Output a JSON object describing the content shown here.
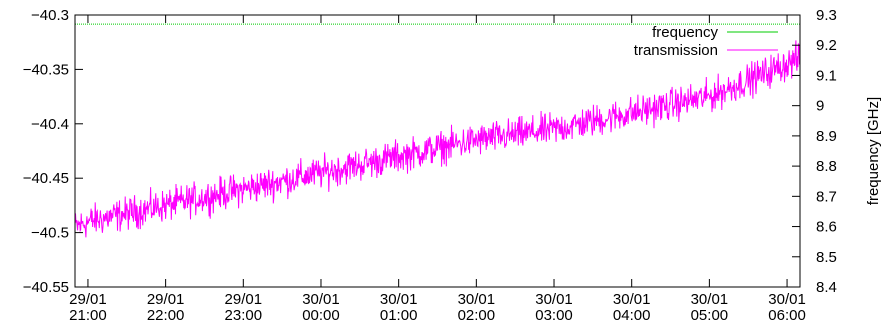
{
  "chart_data": {
    "type": "line",
    "title": "",
    "xlabel": "",
    "ylabel": "",
    "y2label": "frequency [GHz]",
    "grid": false,
    "legend_position": "top-right",
    "x_range": [
      "29/01 20:50",
      "30/01 06:10"
    ],
    "ylim": [
      -40.55,
      -40.3
    ],
    "y2lim": [
      8.4,
      9.3
    ],
    "y_ticks": [
      "-40.3",
      "-40.35",
      "-40.4",
      "-40.45",
      "-40.5",
      "-40.55"
    ],
    "y2_ticks": [
      "9.3",
      "9.2",
      "9.1",
      "9",
      "8.9",
      "8.8",
      "8.7",
      "8.6",
      "8.5",
      "8.4"
    ],
    "x_ticks": [
      {
        "date": "29/01",
        "time": "21:00"
      },
      {
        "date": "29/01",
        "time": "22:00"
      },
      {
        "date": "29/01",
        "time": "23:00"
      },
      {
        "date": "30/01",
        "time": "00:00"
      },
      {
        "date": "30/01",
        "time": "01:00"
      },
      {
        "date": "30/01",
        "time": "02:00"
      },
      {
        "date": "30/01",
        "time": "03:00"
      },
      {
        "date": "30/01",
        "time": "04:00"
      },
      {
        "date": "30/01",
        "time": "05:00"
      },
      {
        "date": "30/01",
        "time": "06:00"
      }
    ],
    "series": [
      {
        "name": "frequency",
        "axis": "y2",
        "color": "#00cc00",
        "style": "dotted",
        "x": [
          "29/01 20:50",
          "30/01 06:10"
        ],
        "values": [
          9.27,
          9.27
        ]
      },
      {
        "name": "transmission",
        "axis": "y",
        "color": "#ff00ff",
        "style": "noisy",
        "noise_amplitude": 0.022,
        "x": [
          "29/01 20:50",
          "29/01 21:00",
          "29/01 22:00",
          "29/01 23:00",
          "30/01 00:00",
          "30/01 01:00",
          "30/01 02:00",
          "30/01 03:00",
          "30/01 04:00",
          "30/01 05:00",
          "30/01 06:00",
          "30/01 06:10"
        ],
        "values": [
          -40.495,
          -40.49,
          -40.475,
          -40.46,
          -40.445,
          -40.43,
          -40.415,
          -40.405,
          -40.39,
          -40.375,
          -40.345,
          -40.34
        ]
      }
    ]
  }
}
